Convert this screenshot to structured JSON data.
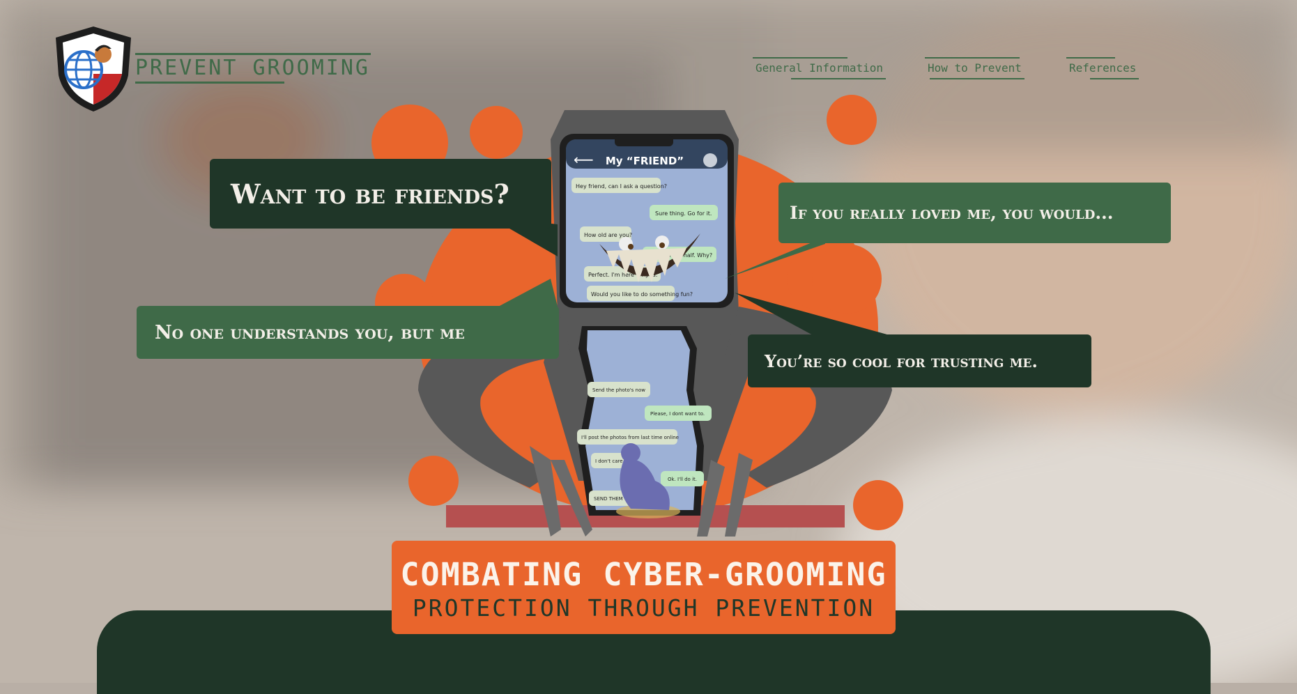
{
  "header": {
    "brand_title": "PREVENT GROOMING",
    "nav": [
      "General Information",
      "How to Prevent",
      "References"
    ]
  },
  "phone": {
    "contact_name": "My “FRIEND”",
    "chat_top": [
      {
        "text": "Hey friend, can I ask a question?",
        "side": "left"
      },
      {
        "text": "Sure thing. Go for it.",
        "side": "right"
      },
      {
        "text": "How old are you?",
        "side": "left"
      },
      {
        "text": "I'm 12 and a half. Why?",
        "side": "right"
      },
      {
        "text": "Perfect. I'm here for you.",
        "side": "left"
      },
      {
        "text": "Would you like to do something fun?",
        "side": "left"
      }
    ],
    "chat_bottom": [
      {
        "text": "Send the photo's now",
        "side": "left"
      },
      {
        "text": "Please, I dont want to.",
        "side": "right"
      },
      {
        "text": "I'll post the photos from last time online",
        "side": "left"
      },
      {
        "text": "I don't care",
        "side": "left"
      },
      {
        "text": "Ok. I'll do it.",
        "side": "right"
      },
      {
        "text": "SEND THEM NOW",
        "side": "left"
      }
    ]
  },
  "bubbles": {
    "b1": "Want to be friends?",
    "b2": "If you really loved me, you would...",
    "b3": "No one understands you, but me",
    "b4": "You’re so cool for trusting me."
  },
  "hero": {
    "title": "COMBATING CYBER-GROOMING",
    "subtitle": "PROTECTION THROUGH PREVENTION"
  },
  "colors": {
    "dark_green": "#1f3628",
    "green": "#3f6a48",
    "orange": "#e9652c",
    "background": "#b9afa6"
  }
}
